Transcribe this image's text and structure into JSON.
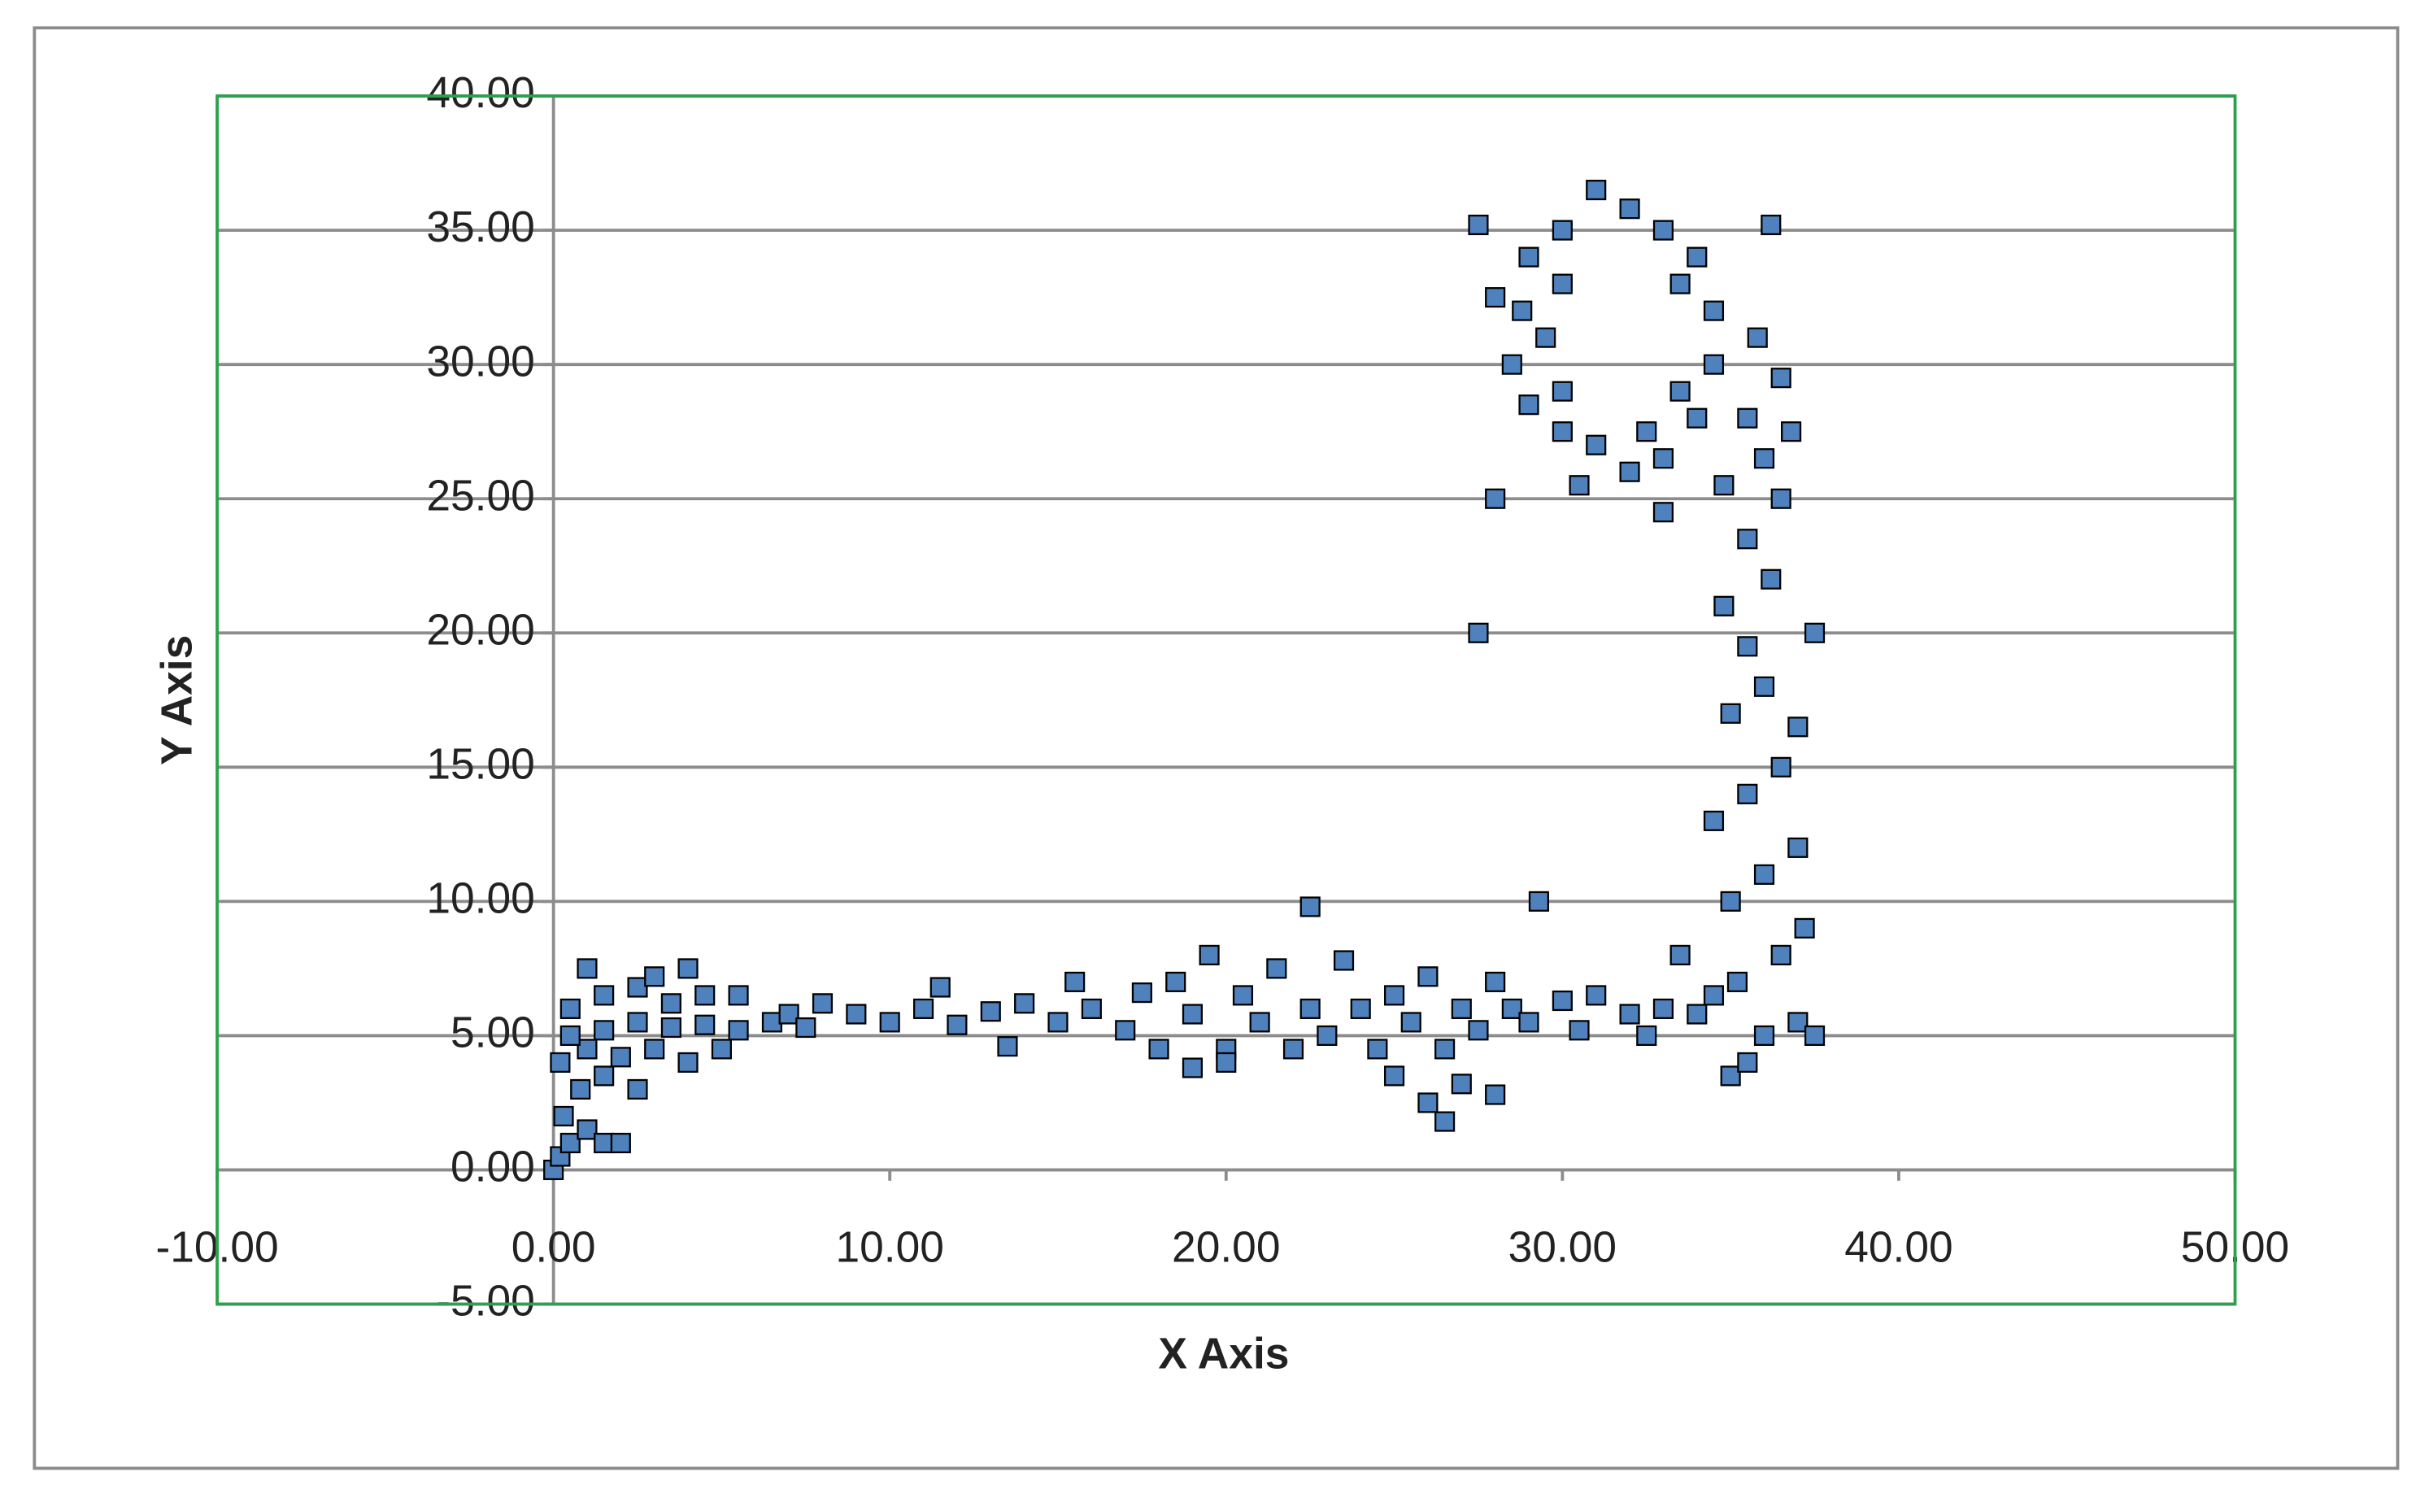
{
  "chart_data": {
    "type": "scatter",
    "x_label": "X Axis",
    "y_label": "Y Axis",
    "color": "#4f81bd",
    "xlim": [
      -10,
      50
    ],
    "ylim": [
      -5,
      40
    ],
    "xticks": [
      {
        "value": -10,
        "label": "-10.00"
      },
      {
        "value": 0,
        "label": "0.00"
      },
      {
        "value": 10,
        "label": "10.00"
      },
      {
        "value": 20,
        "label": "20.00"
      },
      {
        "value": 30,
        "label": "30.00"
      },
      {
        "value": 40,
        "label": "40.00"
      },
      {
        "value": 50,
        "label": "50.00"
      }
    ],
    "yticks": [
      {
        "value": -5,
        "label": "-5.00"
      },
      {
        "value": 0,
        "label": "0.00"
      },
      {
        "value": 5,
        "label": "5.00"
      },
      {
        "value": 10,
        "label": "10.00"
      },
      {
        "value": 15,
        "label": "15.00"
      },
      {
        "value": 20,
        "label": "20.00"
      },
      {
        "value": 25,
        "label": "25.00"
      },
      {
        "value": 30,
        "label": "30.00"
      },
      {
        "value": 35,
        "label": "35.00"
      },
      {
        "value": 40,
        "label": "40.00"
      }
    ],
    "grid": true,
    "x": [
      0,
      0.2,
      0.5,
      1,
      1.5,
      2,
      0.3,
      0.8,
      1.5,
      2.5,
      0.2,
      1,
      2,
      3,
      4,
      5,
      0.5,
      1.5,
      2.5,
      3.5,
      4.5,
      5.5,
      6.5,
      0.5,
      1.5,
      2.5,
      3.5,
      4.5,
      1,
      3,
      4,
      5.5,
      7,
      7.5,
      8,
      9,
      10,
      11,
      11.5,
      12,
      13,
      13.5,
      14,
      15,
      15.5,
      16,
      17,
      17.5,
      18,
      18.5,
      19,
      19.5,
      20,
      20.5,
      21,
      21.5,
      22,
      22.5,
      22.5,
      23,
      23.5,
      24,
      24.5,
      25,
      25.5,
      26,
      26.5,
      27,
      27.5,
      28,
      28.5,
      29,
      29.3,
      30,
      30.5,
      31,
      32,
      32.5,
      33,
      33.5,
      34,
      34.5,
      26,
      27,
      28,
      26.5,
      25,
      20,
      19,
      35,
      35.5,
      36,
      37,
      37.5,
      35.2,
      36.5,
      37.2,
      35,
      36,
      37,
      34.5,
      35.5,
      36.5,
      37,
      35,
      36,
      35.5,
      37.5,
      34.8,
      36.2,
      35.5,
      36.5,
      34.8,
      36,
      35.5,
      36.5,
      35.8,
      36.8,
      29,
      30,
      31,
      32,
      33,
      34,
      34.5,
      34.5,
      34,
      33,
      32,
      31,
      30,
      29,
      28.5,
      28.8,
      29.5,
      30,
      33.5,
      33.5,
      32.5,
      30,
      28,
      30.5,
      33,
      27.5,
      36.2,
      28,
      27.5
    ],
    "values": [
      0,
      0.5,
      1,
      1.5,
      1,
      1,
      2,
      3,
      3.5,
      3,
      4,
      4.5,
      4.2,
      4.5,
      4,
      4.5,
      5,
      5.2,
      5.5,
      5.3,
      5.4,
      5.2,
      5.5,
      6,
      6.5,
      6.8,
      6.2,
      6.5,
      7.5,
      7.2,
      7.5,
      6.5,
      5.8,
      5.3,
      6.2,
      5.8,
      5.5,
      6,
      6.8,
      5.4,
      5.9,
      4.6,
      6.2,
      5.5,
      7,
      6,
      5.2,
      6.6,
      4.5,
      7,
      5.8,
      8,
      4.5,
      6.5,
      5.5,
      7.5,
      4.5,
      9.8,
      6,
      5,
      7.8,
      6,
      4.5,
      6.5,
      5.5,
      7.2,
      4.5,
      6,
      5.2,
      7,
      6,
      5.5,
      10,
      6.3,
      5.2,
      6.5,
      5.8,
      5,
      6,
      8,
      5.8,
      6.5,
      2.5,
      3.2,
      2.8,
      1.8,
      3.5,
      4,
      3.8,
      3.5,
      4,
      5,
      5.5,
      5,
      7,
      8,
      9,
      10,
      11,
      12,
      13,
      14,
      15,
      16.5,
      17,
      18,
      19.5,
      20,
      21,
      22,
      23.5,
      25,
      25.5,
      26.5,
      28,
      29.5,
      31,
      27.5,
      34,
      35,
      36.5,
      35.8,
      35,
      34,
      32,
      30,
      28,
      26.5,
      26,
      27,
      27.5,
      28.5,
      30,
      32,
      31,
      33,
      33,
      29,
      27.5,
      29,
      25,
      25.5,
      24.5,
      35.2,
      35.2,
      32.5,
      20
    ]
  }
}
